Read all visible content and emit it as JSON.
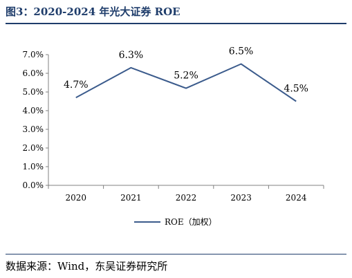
{
  "figure": {
    "title": "图3：2020-2024 年光大证券 ROE",
    "source": "数据来源：Wind，东吴证券研究所"
  },
  "chart_data": {
    "type": "line",
    "title": "",
    "xlabel": "",
    "ylabel": "",
    "categories": [
      "2020",
      "2021",
      "2022",
      "2023",
      "2024"
    ],
    "series": [
      {
        "name": "ROE（加权）",
        "values": [
          4.7,
          6.3,
          5.2,
          6.5,
          4.5
        ],
        "data_labels": [
          "4.7%",
          "6.3%",
          "5.2%",
          "6.5%",
          "4.5%"
        ],
        "color": "#3b5b8c"
      }
    ],
    "ylim": [
      0,
      7
    ],
    "yticks": [
      0,
      1,
      2,
      3,
      4,
      5,
      6,
      7
    ],
    "ytick_labels": [
      "0.0%",
      "1.0%",
      "2.0%",
      "3.0%",
      "4.0%",
      "5.0%",
      "6.0%",
      "7.0%"
    ],
    "grid": false,
    "legend": "bottom-center"
  }
}
